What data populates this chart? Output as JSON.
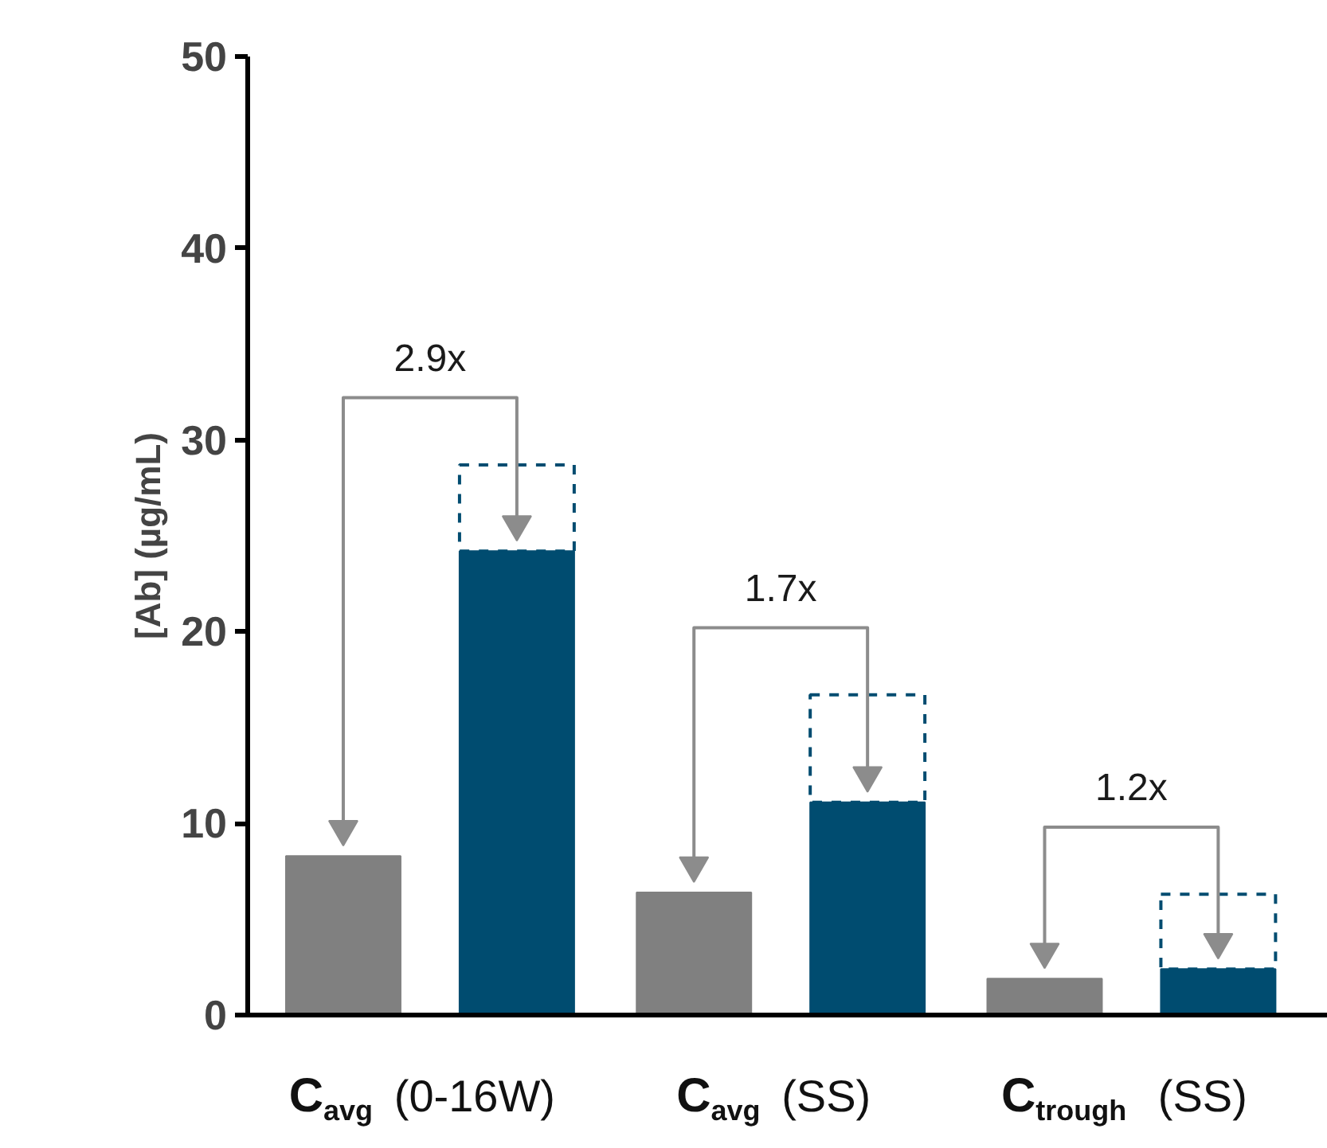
{
  "chart_data": {
    "type": "bar",
    "ylabel": "[Ab] (µg/mL)",
    "categories": [
      "C$_{avg}$ (0-16W)",
      "C$_{avg}$ (SS)",
      "C$_{trough}$ (SS)"
    ],
    "series": [
      {
        "color": "#808080",
        "values": [
          8.3,
          6.4,
          1.9
        ]
      },
      {
        "color": "#004c70",
        "values": [
          24.2,
          11.1,
          2.4
        ]
      },
      {
        "color": "#004c70",
        "values": [
          4.5,
          5.6,
          3.9
        ],
        "base": [
          24.2,
          11.1,
          2.4
        ],
        "line_style": "dashed"
      }
    ],
    "ylim": [
      0,
      50
    ],
    "yticks": [
      0,
      10,
      20,
      30,
      40,
      50
    ],
    "grid": false,
    "annotations": [
      "2.9x",
      "1.7x",
      "1.2x"
    ]
  }
}
